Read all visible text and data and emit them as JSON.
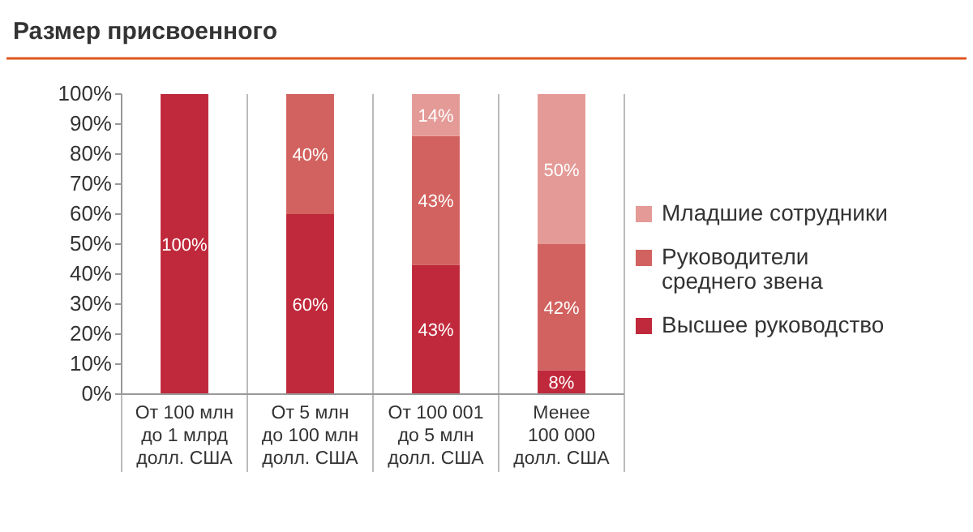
{
  "chart_data": {
    "type": "bar",
    "stacked": true,
    "title": "Размер присвоенного",
    "categories": [
      "От 100 млн\nдо 1 млрд\nдолл. США",
      "От 5 млн\nдо 100 млн\nдолл. США",
      "От 100 001\nдо 5 млн\nдолл. США",
      "Менее\n100 000\nдолл. США"
    ],
    "series": [
      {
        "name": "Высшее руководство",
        "color": "#c0293b",
        "values": [
          100,
          60,
          43,
          8
        ],
        "value_labels": [
          "100%",
          "60%",
          "43%",
          "8%"
        ]
      },
      {
        "name": "Руководители\nсреднего звена",
        "color": "#d2625f",
        "values": [
          0,
          40,
          43,
          42
        ],
        "value_labels": [
          null,
          "40%",
          "43%",
          "42%"
        ]
      },
      {
        "name": "Младшие сотрудники",
        "color": "#e49a96",
        "values": [
          0,
          0,
          14,
          50
        ],
        "value_labels": [
          null,
          null,
          "14%",
          "50%"
        ]
      }
    ],
    "ylim": [
      0,
      100
    ],
    "yticks": [
      {
        "value": 0,
        "label": "0%"
      },
      {
        "value": 10,
        "label": "10%"
      },
      {
        "value": 20,
        "label": "20%"
      },
      {
        "value": 30,
        "label": "30%"
      },
      {
        "value": 40,
        "label": "40%"
      },
      {
        "value": 50,
        "label": "50%"
      },
      {
        "value": 60,
        "label": "60%"
      },
      {
        "value": 70,
        "label": "70%"
      },
      {
        "value": 80,
        "label": "80%"
      },
      {
        "value": 90,
        "label": "90%"
      },
      {
        "value": 100,
        "label": "100%"
      }
    ],
    "legend": "right"
  }
}
